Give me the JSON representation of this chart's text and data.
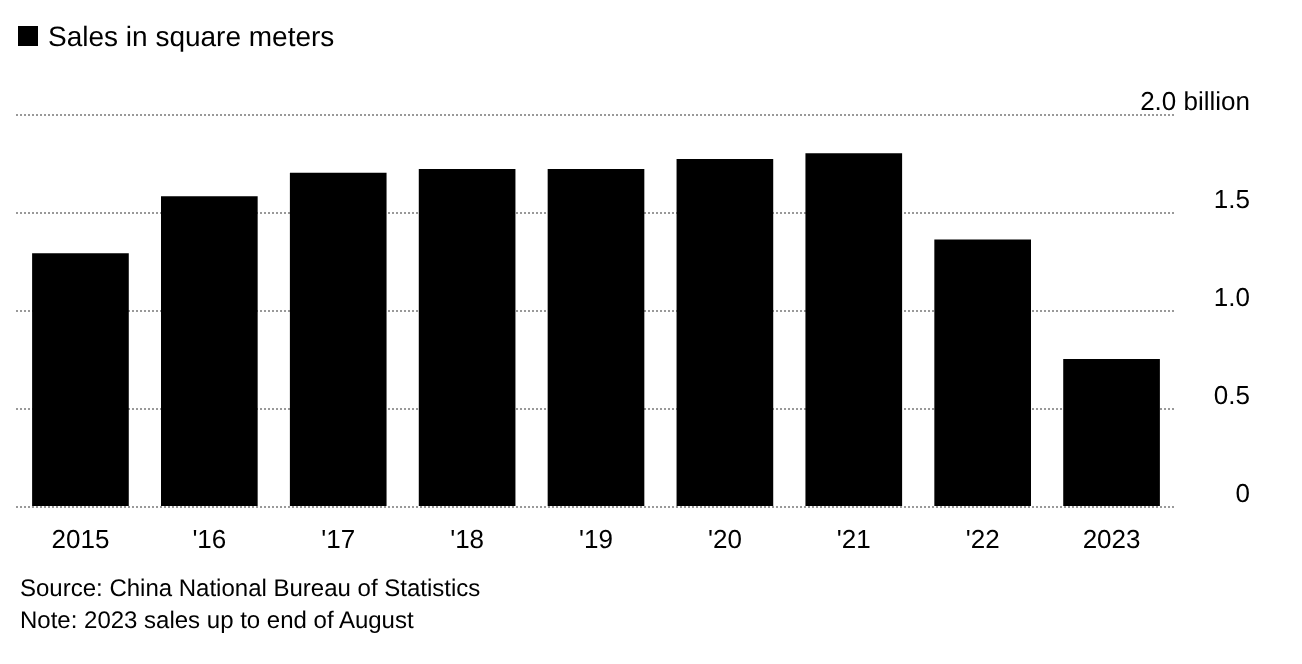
{
  "chart_data": {
    "type": "bar",
    "categories": [
      "2015",
      "'16",
      "'17",
      "'18",
      "'19",
      "'20",
      "'21",
      "'22",
      "2023"
    ],
    "series": [
      {
        "name": "Sales in square meters",
        "color": "#000000",
        "values": [
          1.29,
          1.58,
          1.7,
          1.72,
          1.72,
          1.77,
          1.8,
          1.36,
          0.75
        ]
      }
    ],
    "ylim": [
      0,
      2
    ],
    "yticks": [
      0,
      0.5,
      {
        "value": 1,
        "label": "1.0"
      },
      1.5,
      {
        "value": 2,
        "label": "2.0 billion"
      }
    ],
    "grid": "y",
    "legend": "top left",
    "annotations": [
      "Source: China National Bureau of Statistics",
      "Note: 2023 sales up to end of August"
    ]
  }
}
